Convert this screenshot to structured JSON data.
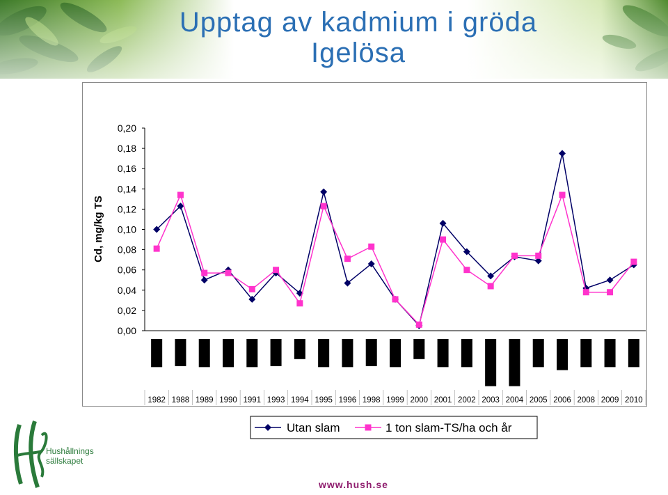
{
  "slide": {
    "title_line1": "Upptag av kadmium i gröda",
    "title_line2": "Igelösa",
    "website": "www.hush.se",
    "logo_line1": "Hushållnings",
    "logo_line2": "sällskapet"
  },
  "colors": {
    "title": "#2b6fb4",
    "series_utan": "#000066",
    "series_slam": "#ff33cc",
    "bars": "#000000",
    "website": "#8f1d6e",
    "logo": "#2a7a3a"
  },
  "chart_data": {
    "type": "line",
    "title": "",
    "ylabel": "Cd, mg/kg TS",
    "xlabel": "",
    "ylim": [
      0,
      0.2
    ],
    "yticks": [
      "0,20",
      "0,18",
      "0,16",
      "0,14",
      "0,12",
      "0,10",
      "0,08",
      "0,06",
      "0,04",
      "0,02",
      "0,00"
    ],
    "grid": false,
    "legend_position": "bottom",
    "categories": [
      "1982",
      "1988",
      "1989",
      "1990",
      "1991",
      "1993",
      "1994",
      "1995",
      "1996",
      "1998",
      "1999",
      "2000",
      "2001",
      "2002",
      "2003",
      "2004",
      "2005",
      "2006",
      "2008",
      "2009",
      "2010"
    ],
    "series": [
      {
        "name": "Utan slam",
        "marker": "diamond",
        "values": [
          0.1,
          0.123,
          0.05,
          0.06,
          0.031,
          0.057,
          0.037,
          0.137,
          0.047,
          0.066,
          0.031,
          0.005,
          0.106,
          0.078,
          0.054,
          0.073,
          0.069,
          0.175,
          0.042,
          0.05,
          0.065
        ]
      },
      {
        "name": "1 ton slam-TS/ha och år",
        "marker": "square",
        "values": [
          0.081,
          0.134,
          0.057,
          0.057,
          0.041,
          0.06,
          0.027,
          0.123,
          0.071,
          0.083,
          0.031,
          0.006,
          0.09,
          0.06,
          0.044,
          0.074,
          0.074,
          0.134,
          0.038,
          0.038,
          0.068
        ]
      }
    ],
    "bars_below_axis": {
      "description_values": [
        0.028,
        0.027,
        0.028,
        0.028,
        0.028,
        0.027,
        0.02,
        0.028,
        0.028,
        0.027,
        0.028,
        0.02,
        0.028,
        0.028,
        0.047,
        0.047,
        0.028,
        0.031,
        0.028,
        0.028,
        0.028
      ]
    }
  }
}
